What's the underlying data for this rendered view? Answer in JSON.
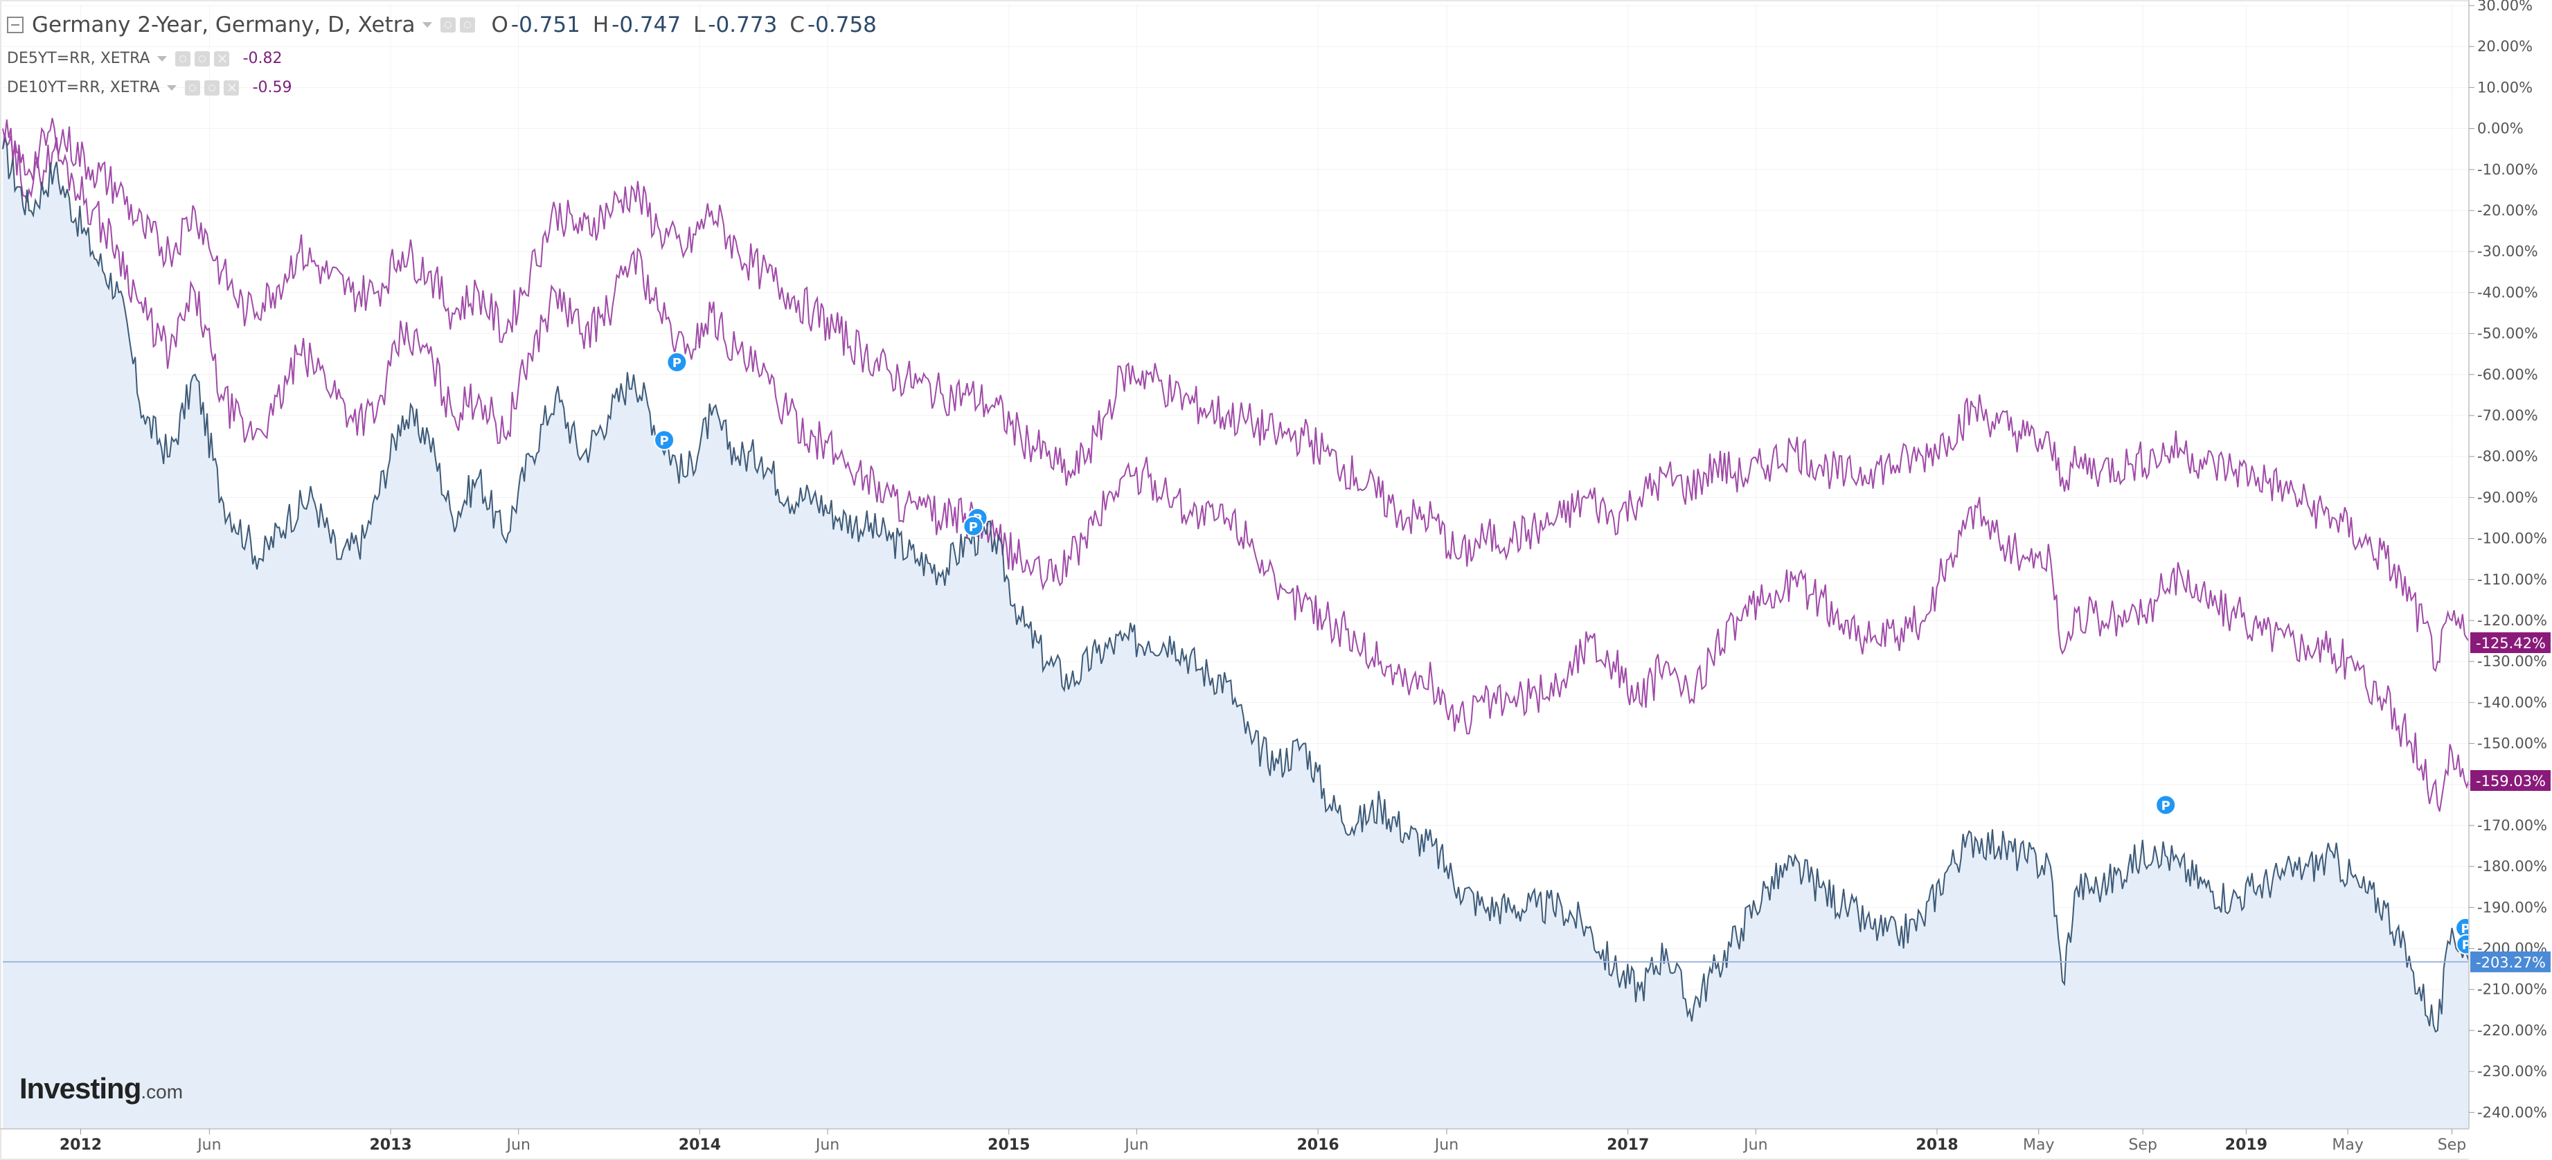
{
  "header": {
    "title": "Germany 2-Year, Germany, D, Xetra",
    "open_label": "O",
    "open_value": "-0.751",
    "high_label": "H",
    "high_value": "-0.747",
    "low_label": "L",
    "low_value": "-0.773",
    "close_label": "C",
    "close_value": "-0.758"
  },
  "comparisons": [
    {
      "label": "DE5YT=RR, XETRA",
      "value": "-0.82"
    },
    {
      "label": "DE10YT=RR, XETRA",
      "value": "-0.59"
    }
  ],
  "logo": {
    "main": "Investing",
    "suffix": ".com"
  },
  "colors": {
    "main_line": "#3d5a78",
    "main_fill": "#e5eef8",
    "compare_line": "#a04aa8",
    "badge_2y": "#4a8ad6",
    "badge_compare": "#8a1a7a",
    "marker": "#2196f3"
  },
  "chart_data": {
    "type": "line",
    "y_scale": "percent",
    "y_range": [
      -244,
      30
    ],
    "y_ticks": [
      "30.00%",
      "20.00%",
      "10.00%",
      "0.00%",
      "-10.00%",
      "-20.00%",
      "-30.00%",
      "-40.00%",
      "-50.00%",
      "-60.00%",
      "-70.00%",
      "-80.00%",
      "-90.00%",
      "-100.00%",
      "-110.00%",
      "-120.00%",
      "-130.00%",
      "-140.00%",
      "-150.00%",
      "-160.00%",
      "-170.00%",
      "-180.00%",
      "-190.00%",
      "-200.00%",
      "-210.00%",
      "-220.00%",
      "-230.00%",
      "-240.00%"
    ],
    "y_tick_values": [
      30,
      20,
      10,
      0,
      -10,
      -20,
      -30,
      -40,
      -50,
      -60,
      -70,
      -80,
      -90,
      -100,
      -110,
      -120,
      -130,
      -140,
      -150,
      -160,
      -170,
      -180,
      -190,
      -200,
      -210,
      -220,
      -230,
      -240
    ],
    "x_range": [
      "2011-10-01",
      "2019-09-21"
    ],
    "x_ticks": [
      {
        "label": "2012",
        "date": "2012-01-01",
        "bold": true
      },
      {
        "label": "Jun",
        "date": "2012-06-01",
        "bold": false
      },
      {
        "label": "2013",
        "date": "2013-01-01",
        "bold": true
      },
      {
        "label": "Jun",
        "date": "2013-06-01",
        "bold": false
      },
      {
        "label": "2014",
        "date": "2014-01-01",
        "bold": true
      },
      {
        "label": "Jun",
        "date": "2014-06-01",
        "bold": false
      },
      {
        "label": "2015",
        "date": "2015-01-01",
        "bold": true
      },
      {
        "label": "Jun",
        "date": "2015-06-01",
        "bold": false
      },
      {
        "label": "2016",
        "date": "2016-01-01",
        "bold": true
      },
      {
        "label": "Jun",
        "date": "2016-06-01",
        "bold": false
      },
      {
        "label": "2017",
        "date": "2017-01-01",
        "bold": true
      },
      {
        "label": "Jun",
        "date": "2017-06-01",
        "bold": false
      },
      {
        "label": "2018",
        "date": "2018-01-01",
        "bold": true
      },
      {
        "label": "May",
        "date": "2018-05-01",
        "bold": false
      },
      {
        "label": "Sep",
        "date": "2018-09-01",
        "bold": false
      },
      {
        "label": "2019",
        "date": "2019-01-01",
        "bold": true
      },
      {
        "label": "May",
        "date": "2019-05-01",
        "bold": false
      },
      {
        "label": "Sep",
        "date": "2019-09-01",
        "bold": false
      }
    ],
    "crosshair_value": -203.27,
    "last_value_labels": [
      {
        "text": "-125.42%",
        "value": -125.42,
        "series": "DE10YT=RR, XETRA"
      },
      {
        "text": "-159.03%",
        "value": -159.03,
        "series": "DE5YT=RR, XETRA"
      },
      {
        "text": "-203.27%",
        "value": -203.27,
        "series": "Germany 2-Year"
      }
    ],
    "series": [
      {
        "name": "Germany 2-Year",
        "x": [
          "2011-10-01",
          "2011-11-01",
          "2011-12-01",
          "2012-01-15",
          "2012-02-15",
          "2012-03-15",
          "2012-04-15",
          "2012-05-15",
          "2012-06-15",
          "2012-07-15",
          "2012-08-01",
          "2012-09-01",
          "2012-10-01",
          "2012-11-01",
          "2012-12-01",
          "2013-01-15",
          "2013-02-15",
          "2013-03-15",
          "2013-04-15",
          "2013-05-15",
          "2013-06-15",
          "2013-07-15",
          "2013-08-15",
          "2013-09-15",
          "2013-10-15",
          "2013-11-15",
          "2013-12-15",
          "2014-01-15",
          "2014-02-15",
          "2014-03-15",
          "2014-04-15",
          "2014-05-15",
          "2014-06-15",
          "2014-07-15",
          "2014-08-15",
          "2014-09-15",
          "2014-10-15",
          "2014-11-15",
          "2014-12-15",
          "2015-01-15",
          "2015-02-15",
          "2015-03-15",
          "2015-04-15",
          "2015-05-15",
          "2015-06-15",
          "2015-07-15",
          "2015-08-15",
          "2015-09-15",
          "2015-10-15",
          "2015-11-15",
          "2015-12-15",
          "2016-01-15",
          "2016-02-15",
          "2016-03-15",
          "2016-04-15",
          "2016-05-15",
          "2016-06-15",
          "2016-07-15",
          "2016-08-15",
          "2016-09-15",
          "2016-10-15",
          "2016-11-15",
          "2016-12-15",
          "2017-01-15",
          "2017-02-15",
          "2017-03-15",
          "2017-04-15",
          "2017-05-15",
          "2017-06-15",
          "2017-07-15",
          "2017-08-15",
          "2017-09-15",
          "2017-10-15",
          "2017-11-15",
          "2017-12-15",
          "2018-01-15",
          "2018-02-15",
          "2018-03-15",
          "2018-04-15",
          "2018-05-15",
          "2018-05-29",
          "2018-06-15",
          "2018-07-15",
          "2018-08-15",
          "2018-09-15",
          "2018-10-15",
          "2018-11-15",
          "2018-12-15",
          "2019-01-15",
          "2019-02-15",
          "2019-03-15",
          "2019-04-15",
          "2019-05-15",
          "2019-06-15",
          "2019-07-15",
          "2019-08-15",
          "2019-09-01",
          "2019-09-21"
        ],
        "values": [
          -5,
          -20,
          -10,
          -30,
          -40,
          -70,
          -80,
          -60,
          -90,
          -100,
          -105,
          -95,
          -90,
          -105,
          -100,
          -70,
          -75,
          -95,
          -85,
          -100,
          -80,
          -65,
          -80,
          -70,
          -60,
          -75,
          -85,
          -70,
          -80,
          -80,
          -90,
          -90,
          -95,
          -97,
          -100,
          -105,
          -108,
          -100,
          -100,
          -120,
          -130,
          -135,
          -128,
          -125,
          -125,
          -125,
          -132,
          -135,
          -150,
          -155,
          -150,
          -165,
          -170,
          -165,
          -172,
          -175,
          -185,
          -190,
          -190,
          -190,
          -190,
          -195,
          -205,
          -210,
          -200,
          -215,
          -205,
          -195,
          -185,
          -180,
          -185,
          -190,
          -195,
          -197,
          -193,
          -180,
          -173,
          -175,
          -178,
          -180,
          -208,
          -185,
          -185,
          -180,
          -175,
          -180,
          -185,
          -188,
          -185,
          -182,
          -180,
          -178,
          -185,
          -190,
          -205,
          -220,
          -195,
          -203
        ]
      },
      {
        "name": "DE5YT=RR, XETRA",
        "x": [
          "2011-10-01",
          "2011-11-01",
          "2011-12-01",
          "2012-01-15",
          "2012-02-15",
          "2012-03-15",
          "2012-04-15",
          "2012-05-15",
          "2012-06-15",
          "2012-07-15",
          "2012-08-15",
          "2012-09-15",
          "2012-10-15",
          "2012-11-15",
          "2012-12-15",
          "2013-01-15",
          "2013-02-15",
          "2013-03-15",
          "2013-04-15",
          "2013-05-15",
          "2013-06-15",
          "2013-07-15",
          "2013-08-15",
          "2013-09-15",
          "2013-10-15",
          "2013-11-15",
          "2013-12-15",
          "2014-01-15",
          "2014-02-15",
          "2014-03-15",
          "2014-04-15",
          "2014-05-15",
          "2014-06-15",
          "2014-07-15",
          "2014-08-15",
          "2014-09-15",
          "2014-10-15",
          "2014-11-15",
          "2014-12-15",
          "2015-01-15",
          "2015-02-15",
          "2015-03-15",
          "2015-04-15",
          "2015-05-15",
          "2015-06-15",
          "2015-07-15",
          "2015-08-15",
          "2015-09-15",
          "2015-10-15",
          "2015-11-15",
          "2015-12-15",
          "2016-01-15",
          "2016-02-15",
          "2016-03-15",
          "2016-04-15",
          "2016-05-15",
          "2016-06-15",
          "2016-07-15",
          "2016-08-15",
          "2016-09-15",
          "2016-10-15",
          "2016-11-15",
          "2016-12-15",
          "2017-01-15",
          "2017-02-15",
          "2017-03-15",
          "2017-04-15",
          "2017-05-15",
          "2017-06-15",
          "2017-07-15",
          "2017-08-15",
          "2017-09-15",
          "2017-10-15",
          "2017-11-15",
          "2017-12-15",
          "2018-01-15",
          "2018-02-15",
          "2018-03-15",
          "2018-04-15",
          "2018-05-15",
          "2018-05-29",
          "2018-06-15",
          "2018-07-15",
          "2018-08-15",
          "2018-09-15",
          "2018-10-15",
          "2018-11-15",
          "2018-12-15",
          "2019-01-15",
          "2019-02-15",
          "2019-03-15",
          "2019-04-15",
          "2019-05-15",
          "2019-06-15",
          "2019-07-15",
          "2019-08-15",
          "2019-09-01",
          "2019-09-21"
        ],
        "values": [
          0,
          -15,
          -5,
          -20,
          -30,
          -45,
          -55,
          -40,
          -65,
          -75,
          -70,
          -55,
          -60,
          -70,
          -70,
          -50,
          -55,
          -70,
          -65,
          -75,
          -55,
          -40,
          -50,
          -45,
          -30,
          -45,
          -55,
          -45,
          -55,
          -60,
          -70,
          -75,
          -80,
          -85,
          -90,
          -93,
          -95,
          -95,
          -100,
          -105,
          -110,
          -105,
          -95,
          -85,
          -85,
          -90,
          -95,
          -95,
          -100,
          -115,
          -115,
          -120,
          -125,
          -130,
          -135,
          -135,
          -145,
          -140,
          -140,
          -138,
          -135,
          -125,
          -130,
          -140,
          -130,
          -140,
          -125,
          -120,
          -115,
          -110,
          -115,
          -120,
          -125,
          -124,
          -120,
          -105,
          -92,
          -100,
          -105,
          -105,
          -128,
          -118,
          -120,
          -120,
          -115,
          -108,
          -115,
          -118,
          -122,
          -124,
          -126,
          -128,
          -132,
          -140,
          -150,
          -165,
          -152,
          -159
        ]
      },
      {
        "name": "DE10YT=RR, XETRA",
        "x": [
          "2011-10-01",
          "2011-11-01",
          "2011-12-01",
          "2012-01-15",
          "2012-02-15",
          "2012-03-15",
          "2012-04-15",
          "2012-05-15",
          "2012-06-15",
          "2012-07-15",
          "2012-08-15",
          "2012-09-15",
          "2012-10-15",
          "2012-11-15",
          "2012-12-15",
          "2013-01-15",
          "2013-02-15",
          "2013-03-15",
          "2013-04-15",
          "2013-05-15",
          "2013-06-15",
          "2013-07-15",
          "2013-08-15",
          "2013-09-15",
          "2013-10-15",
          "2013-11-15",
          "2013-12-15",
          "2014-01-15",
          "2014-02-15",
          "2014-03-15",
          "2014-04-15",
          "2014-05-15",
          "2014-06-15",
          "2014-07-15",
          "2014-08-15",
          "2014-09-15",
          "2014-10-15",
          "2014-11-15",
          "2014-12-15",
          "2015-01-15",
          "2015-02-15",
          "2015-03-15",
          "2015-04-15",
          "2015-05-15",
          "2015-06-15",
          "2015-07-15",
          "2015-08-15",
          "2015-09-15",
          "2015-10-15",
          "2015-11-15",
          "2015-12-15",
          "2016-01-15",
          "2016-02-15",
          "2016-03-15",
          "2016-04-15",
          "2016-05-15",
          "2016-06-15",
          "2016-07-15",
          "2016-08-15",
          "2016-09-15",
          "2016-10-15",
          "2016-11-15",
          "2016-12-15",
          "2017-01-15",
          "2017-02-15",
          "2017-03-15",
          "2017-04-15",
          "2017-05-15",
          "2017-06-15",
          "2017-07-15",
          "2017-08-15",
          "2017-09-15",
          "2017-10-15",
          "2017-11-15",
          "2017-12-15",
          "2018-01-15",
          "2018-02-15",
          "2018-03-15",
          "2018-04-15",
          "2018-05-15",
          "2018-05-29",
          "2018-06-15",
          "2018-07-15",
          "2018-08-15",
          "2018-09-15",
          "2018-10-15",
          "2018-11-15",
          "2018-12-15",
          "2019-01-15",
          "2019-02-15",
          "2019-03-15",
          "2019-04-15",
          "2019-05-15",
          "2019-06-15",
          "2019-07-15",
          "2019-08-15",
          "2019-09-01",
          "2019-09-21"
        ],
        "values": [
          -5,
          -10,
          0,
          -10,
          -15,
          -25,
          -30,
          -20,
          -35,
          -45,
          -40,
          -30,
          -35,
          -40,
          -40,
          -30,
          -35,
          -45,
          -40,
          -50,
          -35,
          -20,
          -25,
          -20,
          -15,
          -25,
          -30,
          -20,
          -30,
          -35,
          -40,
          -45,
          -50,
          -55,
          -60,
          -62,
          -65,
          -65,
          -68,
          -75,
          -80,
          -85,
          -75,
          -60,
          -60,
          -65,
          -68,
          -70,
          -72,
          -75,
          -75,
          -80,
          -85,
          -90,
          -95,
          -95,
          -105,
          -100,
          -100,
          -98,
          -95,
          -90,
          -95,
          -90,
          -85,
          -88,
          -82,
          -85,
          -82,
          -78,
          -82,
          -85,
          -83,
          -82,
          -80,
          -75,
          -68,
          -72,
          -75,
          -78,
          -85,
          -82,
          -83,
          -82,
          -80,
          -78,
          -82,
          -83,
          -85,
          -88,
          -92,
          -95,
          -100,
          -105,
          -115,
          -130,
          -120,
          -125
        ]
      }
    ],
    "markers": [
      {
        "label": "P",
        "date": "2013-12-05",
        "value": -57
      },
      {
        "label": "P",
        "date": "2013-11-20",
        "value": -76
      },
      {
        "label": "P",
        "date": "2014-11-25",
        "value": -95
      },
      {
        "label": "P",
        "date": "2014-11-20",
        "value": -97
      },
      {
        "label": "P",
        "date": "2018-09-28",
        "value": -165
      },
      {
        "label": "P",
        "date": "2019-09-17",
        "value": -195
      },
      {
        "label": "P",
        "date": "2019-09-18",
        "value": -199
      }
    ]
  }
}
